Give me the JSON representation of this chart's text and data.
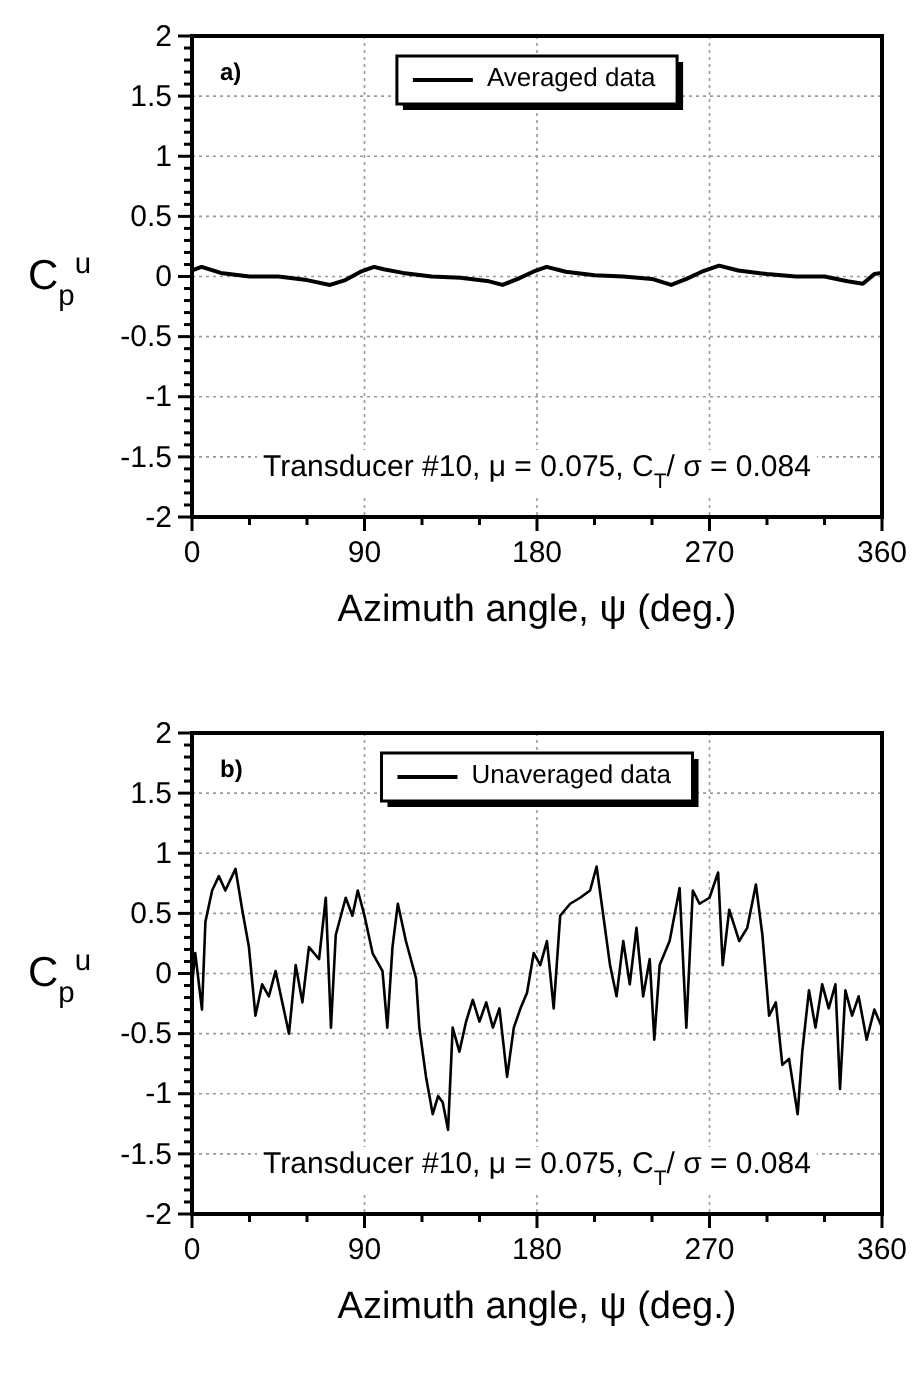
{
  "chart_data": [
    {
      "type": "line",
      "xlabel": "Azimuth angle, ψ (deg.)",
      "ylabel": "C$_{p}$$^{u}$",
      "annotations": [
        "a)",
        "Transducer #10, μ = 0.075, C$_{T}$/ σ = 0.084"
      ],
      "xlim": [
        0,
        360
      ],
      "ylim": [
        -2,
        2
      ],
      "xticks": [
        0,
        {
          "value": 30,
          "label": null
        },
        {
          "value": 60,
          "label": null
        },
        90,
        {
          "value": 120,
          "label": null
        },
        {
          "value": 150,
          "label": null
        },
        180,
        {
          "value": 210,
          "label": null
        },
        {
          "value": 240,
          "label": null
        },
        270,
        {
          "value": 300,
          "label": null
        },
        {
          "value": 330,
          "label": null
        },
        360
      ],
      "yticks": [
        -2,
        {
          "value": -1.9,
          "label": null
        },
        {
          "value": -1.8,
          "label": null
        },
        {
          "value": -1.7,
          "label": null
        },
        {
          "value": -1.6,
          "label": null
        },
        -1.5,
        {
          "value": -1.4,
          "label": null
        },
        {
          "value": -1.3,
          "label": null
        },
        {
          "value": -1.2,
          "label": null
        },
        {
          "value": -1.1,
          "label": null
        },
        -1,
        {
          "value": -0.9,
          "label": null
        },
        {
          "value": -0.8,
          "label": null
        },
        {
          "value": -0.7,
          "label": null
        },
        {
          "value": -0.6,
          "label": null
        },
        -0.5,
        {
          "value": -0.4,
          "label": null
        },
        {
          "value": -0.3,
          "label": null
        },
        {
          "value": -0.2,
          "label": null
        },
        {
          "value": -0.1,
          "label": null
        },
        0,
        {
          "value": 0.1,
          "label": null
        },
        {
          "value": 0.2,
          "label": null
        },
        {
          "value": 0.3,
          "label": null
        },
        {
          "value": 0.4,
          "label": null
        },
        0.5,
        {
          "value": 0.6,
          "label": null
        },
        {
          "value": 0.7,
          "label": null
        },
        {
          "value": 0.8,
          "label": null
        },
        {
          "value": 0.9,
          "label": null
        },
        1,
        {
          "value": 1.1,
          "label": null
        },
        {
          "value": 1.2,
          "label": null
        },
        {
          "value": 1.3,
          "label": null
        },
        {
          "value": 1.4,
          "label": null
        },
        1.5,
        {
          "value": 1.6,
          "label": null
        },
        {
          "value": 1.7,
          "label": null
        },
        {
          "value": 1.8,
          "label": null
        },
        {
          "value": 1.9,
          "label": null
        },
        2
      ],
      "grid": true,
      "legend": "top",
      "line_style": "solid",
      "marker": "none",
      "series": [
        {
          "name": "Averaged data",
          "color": "#000000",
          "x": [
            0,
            5,
            15,
            30,
            45,
            60,
            72,
            80,
            88,
            95,
            100,
            110,
            125,
            140,
            155,
            162,
            170,
            178,
            185,
            195,
            210,
            225,
            240,
            250,
            258,
            266,
            275,
            285,
            300,
            315,
            330,
            342,
            350,
            356,
            360
          ],
          "values": [
            0.05,
            0.08,
            0.03,
            0.0,
            0.0,
            -0.03,
            -0.07,
            -0.03,
            0.04,
            0.08,
            0.06,
            0.03,
            0.0,
            -0.01,
            -0.04,
            -0.07,
            -0.02,
            0.04,
            0.08,
            0.04,
            0.01,
            0.0,
            -0.02,
            -0.07,
            -0.02,
            0.04,
            0.09,
            0.05,
            0.02,
            0.0,
            0.0,
            -0.04,
            -0.06,
            0.02,
            0.03
          ]
        }
      ]
    },
    {
      "type": "line",
      "xlabel": "Azimuth angle, ψ (deg.)",
      "ylabel": "C$_{p}$$^{u}$",
      "annotations": [
        "b)",
        "Transducer #10, μ = 0.075, C$_{T}$/ σ = 0.084"
      ],
      "xlim": [
        0,
        360
      ],
      "ylim": [
        -2,
        2
      ],
      "xticks": [
        0,
        {
          "value": 30,
          "label": null
        },
        {
          "value": 60,
          "label": null
        },
        90,
        {
          "value": 120,
          "label": null
        },
        {
          "value": 150,
          "label": null
        },
        180,
        {
          "value": 210,
          "label": null
        },
        {
          "value": 240,
          "label": null
        },
        270,
        {
          "value": 300,
          "label": null
        },
        {
          "value": 330,
          "label": null
        },
        360
      ],
      "yticks": [
        -2,
        {
          "value": -1.9,
          "label": null
        },
        {
          "value": -1.8,
          "label": null
        },
        {
          "value": -1.7,
          "label": null
        },
        {
          "value": -1.6,
          "label": null
        },
        -1.5,
        {
          "value": -1.4,
          "label": null
        },
        {
          "value": -1.3,
          "label": null
        },
        {
          "value": -1.2,
          "label": null
        },
        {
          "value": -1.1,
          "label": null
        },
        -1,
        {
          "value": -0.9,
          "label": null
        },
        {
          "value": -0.8,
          "label": null
        },
        {
          "value": -0.7,
          "label": null
        },
        {
          "value": -0.6,
          "label": null
        },
        -0.5,
        {
          "value": -0.4,
          "label": null
        },
        {
          "value": -0.3,
          "label": null
        },
        {
          "value": -0.2,
          "label": null
        },
        {
          "value": -0.1,
          "label": null
        },
        0,
        {
          "value": 0.1,
          "label": null
        },
        {
          "value": 0.2,
          "label": null
        },
        {
          "value": 0.3,
          "label": null
        },
        {
          "value": 0.4,
          "label": null
        },
        0.5,
        {
          "value": 0.6,
          "label": null
        },
        {
          "value": 0.7,
          "label": null
        },
        {
          "value": 0.8,
          "label": null
        },
        {
          "value": 0.9,
          "label": null
        },
        1,
        {
          "value": 1.1,
          "label": null
        },
        {
          "value": 1.2,
          "label": null
        },
        {
          "value": 1.3,
          "label": null
        },
        {
          "value": 1.4,
          "label": null
        },
        1.5,
        {
          "value": 1.6,
          "label": null
        },
        {
          "value": 1.7,
          "label": null
        },
        {
          "value": 1.8,
          "label": null
        },
        {
          "value": 1.9,
          "label": null
        },
        2
      ],
      "grid": true,
      "legend": "top",
      "line_style": "solid",
      "marker": "none",
      "series": [
        {
          "name": "Unaveraged data",
          "color": "#000000",
          "x": [
            0,
            1.7,
            5.2,
            7.0,
            10.5,
            14.0,
            17.4,
            22.7,
            26.2,
            29.7,
            33.1,
            36.6,
            40.1,
            43.6,
            47.1,
            50.6,
            54.1,
            57.6,
            61.0,
            66.3,
            69.8,
            72.5,
            75.0,
            80.2,
            83.7,
            86.5,
            90.0,
            94.2,
            99.4,
            101.9,
            104.6,
            107.4,
            111.6,
            116.9,
            118.6,
            122.1,
            125.6,
            128.4,
            130.8,
            133.6,
            136.0,
            139.5,
            143.0,
            146.5,
            150.0,
            153.5,
            157.0,
            160.4,
            164.4,
            167.9,
            171.4,
            174.8,
            178.3,
            181.7,
            185.2,
            188.7,
            192.1,
            197.3,
            202.5,
            207.7,
            211.1,
            214.6,
            218.1,
            221.5,
            225.0,
            228.4,
            231.9,
            235.4,
            238.8,
            241.2,
            244.0,
            249.2,
            254.4,
            257.9,
            261.3,
            264.8,
            270.0,
            274.5,
            276.9,
            280.3,
            285.5,
            289.7,
            294.2,
            297.6,
            301.1,
            304.6,
            308.0,
            311.5,
            316.0,
            318.4,
            321.9,
            325.3,
            328.8,
            332.2,
            335.7,
            338.1,
            340.9,
            344.4,
            347.8,
            352,
            356,
            360
          ],
          "values": [
            -0.09,
            0.17,
            -0.3,
            0.43,
            0.69,
            0.81,
            0.69,
            0.87,
            0.53,
            0.22,
            -0.35,
            -0.09,
            -0.19,
            0.02,
            -0.24,
            -0.5,
            0.07,
            -0.24,
            0.22,
            0.12,
            0.63,
            -0.45,
            0.32,
            0.63,
            0.48,
            0.69,
            0.48,
            0.17,
            0.02,
            -0.45,
            0.22,
            0.58,
            0.27,
            -0.04,
            -0.45,
            -0.86,
            -1.17,
            -1.02,
            -1.07,
            -1.3,
            -0.45,
            -0.65,
            -0.4,
            -0.22,
            -0.4,
            -0.24,
            -0.45,
            -0.29,
            -0.86,
            -0.45,
            -0.29,
            -0.16,
            0.17,
            0.07,
            0.27,
            -0.29,
            0.48,
            0.58,
            0.63,
            0.69,
            0.89,
            0.48,
            0.07,
            -0.19,
            0.27,
            -0.09,
            0.38,
            -0.19,
            0.12,
            -0.55,
            0.07,
            0.27,
            0.71,
            -0.45,
            0.69,
            0.58,
            0.63,
            0.84,
            0.07,
            0.53,
            0.27,
            0.38,
            0.74,
            0.32,
            -0.35,
            -0.24,
            -0.76,
            -0.71,
            -1.17,
            -0.65,
            -0.14,
            -0.45,
            -0.09,
            -0.29,
            -0.09,
            -0.96,
            -0.14,
            -0.35,
            -0.19,
            -0.55,
            -0.3,
            -0.45
          ]
        }
      ]
    }
  ]
}
